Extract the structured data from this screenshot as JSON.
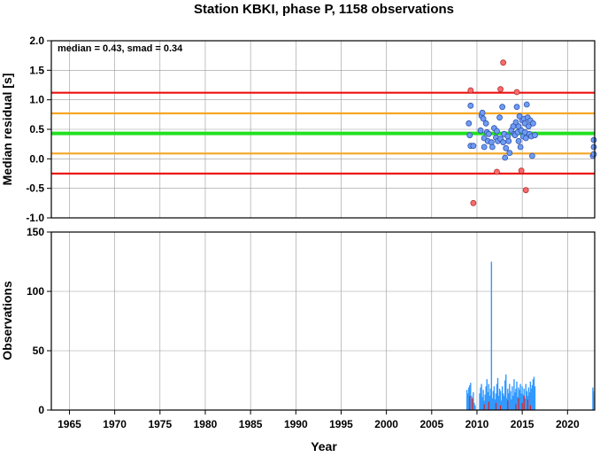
{
  "title": "Station KBKI, phase P, 1158 observations",
  "colors": {
    "median_line": "#22e022",
    "smad_line": "#f5a623",
    "outer_line": "#ee1111",
    "point_fill": "#6f9cf5",
    "point_outlier": "#ff6b6b",
    "bar_blue": "#3399ff",
    "bar_red": "#dd2222",
    "grid": "#9a9a9a"
  },
  "chart_data": [
    {
      "type": "scatter",
      "name": "residuals",
      "annotation": "median = 0.43, smad = 0.34",
      "ylabel": "Median residual [s]",
      "xlim": [
        1963,
        2023
      ],
      "ylim": [
        -1.0,
        2.0
      ],
      "yticks": [
        "2.0",
        "1.5",
        "1.0",
        "0.5",
        "0.0",
        "-0.5",
        "-1.0"
      ],
      "grid": true,
      "hlines": [
        {
          "y": 1.12,
          "kind": "outer"
        },
        {
          "y": 0.77,
          "kind": "smad"
        },
        {
          "y": 0.43,
          "kind": "median"
        },
        {
          "y": 0.09,
          "kind": "smad"
        },
        {
          "y": -0.25,
          "kind": "outer"
        }
      ],
      "points": [
        [
          2009.1,
          0.6
        ],
        [
          2009.2,
          0.4
        ],
        [
          2009.3,
          0.9
        ],
        [
          2009.3,
          0.22
        ],
        [
          2009.6,
          0.22
        ],
        [
          2010.4,
          0.48
        ],
        [
          2010.5,
          0.73
        ],
        [
          2010.6,
          0.78
        ],
        [
          2010.7,
          0.68
        ],
        [
          2010.8,
          0.35
        ],
        [
          2010.8,
          0.2
        ],
        [
          2011.0,
          0.6
        ],
        [
          2011.1,
          0.45
        ],
        [
          2011.2,
          0.3
        ],
        [
          2011.3,
          0.42
        ],
        [
          2011.6,
          0.28
        ],
        [
          2011.7,
          0.2
        ],
        [
          2011.9,
          0.52
        ],
        [
          2012.1,
          0.36
        ],
        [
          2012.2,
          0.47
        ],
        [
          2012.3,
          0.3
        ],
        [
          2012.5,
          0.7
        ],
        [
          2012.6,
          0.34
        ],
        [
          2012.8,
          0.88
        ],
        [
          2012.9,
          0.28
        ],
        [
          2013.0,
          0.42
        ],
        [
          2013.1,
          0.02
        ],
        [
          2013.2,
          0.18
        ],
        [
          2013.4,
          0.38
        ],
        [
          2013.5,
          0.3
        ],
        [
          2013.6,
          0.1
        ],
        [
          2013.8,
          0.48
        ],
        [
          2014.0,
          0.55
        ],
        [
          2014.1,
          0.42
        ],
        [
          2014.2,
          0.4
        ],
        [
          2014.3,
          0.62
        ],
        [
          2014.4,
          0.88
        ],
        [
          2014.5,
          0.45
        ],
        [
          2014.6,
          0.55
        ],
        [
          2014.6,
          0.3
        ],
        [
          2014.7,
          0.72
        ],
        [
          2014.8,
          0.2
        ],
        [
          2014.9,
          0.48
        ],
        [
          2015.0,
          0.65
        ],
        [
          2015.1,
          0.38
        ],
        [
          2015.2,
          0.68
        ],
        [
          2015.3,
          0.6
        ],
        [
          2015.3,
          0.45
        ],
        [
          2015.4,
          0.35
        ],
        [
          2015.5,
          0.92
        ],
        [
          2015.6,
          0.7
        ],
        [
          2015.7,
          0.55
        ],
        [
          2015.8,
          0.42
        ],
        [
          2015.9,
          0.65
        ],
        [
          2016.0,
          0.38
        ],
        [
          2016.1,
          0.05
        ],
        [
          2016.2,
          0.6
        ],
        [
          2016.4,
          0.4
        ],
        [
          2022.8,
          0.05
        ],
        [
          2022.9,
          0.32
        ],
        [
          2023.0,
          0.08
        ],
        [
          2023.0,
          0.2
        ]
      ],
      "outliers": [
        [
          2009.3,
          1.16
        ],
        [
          2009.6,
          -0.75
        ],
        [
          2012.2,
          -0.22
        ],
        [
          2012.6,
          1.18
        ],
        [
          2012.9,
          1.63
        ],
        [
          2014.4,
          1.13
        ],
        [
          2014.9,
          -0.2
        ],
        [
          2015.4,
          -0.53
        ]
      ]
    },
    {
      "type": "bar",
      "name": "observations",
      "ylabel": "Observations",
      "xlabel": "Year",
      "xlim": [
        1963,
        2023
      ],
      "ylim": [
        0,
        150
      ],
      "xticks": [
        "1965",
        "1970",
        "1975",
        "1980",
        "1985",
        "1990",
        "1995",
        "2000",
        "2005",
        "2010",
        "2015",
        "2020"
      ],
      "yticks": [
        "150",
        "100",
        "50",
        "0"
      ],
      "grid": true,
      "blue_bars": [
        [
          2008.9,
          17
        ],
        [
          2009.0,
          14
        ],
        [
          2009.1,
          19
        ],
        [
          2009.2,
          21
        ],
        [
          2009.3,
          23
        ],
        [
          2009.4,
          12
        ],
        [
          2009.5,
          9
        ],
        [
          2009.6,
          15
        ],
        [
          2009.7,
          6
        ],
        [
          2009.8,
          4
        ],
        [
          2010.3,
          14
        ],
        [
          2010.4,
          19
        ],
        [
          2010.5,
          22
        ],
        [
          2010.6,
          11
        ],
        [
          2010.7,
          17
        ],
        [
          2010.8,
          8
        ],
        [
          2010.9,
          13
        ],
        [
          2011.0,
          20
        ],
        [
          2011.1,
          26
        ],
        [
          2011.2,
          15
        ],
        [
          2011.3,
          22
        ],
        [
          2011.4,
          12
        ],
        [
          2011.5,
          18
        ],
        [
          2011.6,
          125
        ],
        [
          2011.7,
          10
        ],
        [
          2011.8,
          16
        ],
        [
          2011.9,
          20
        ],
        [
          2012.0,
          9
        ],
        [
          2012.1,
          14
        ],
        [
          2012.2,
          22
        ],
        [
          2012.3,
          27
        ],
        [
          2012.4,
          12
        ],
        [
          2012.5,
          18
        ],
        [
          2012.6,
          16
        ],
        [
          2012.7,
          8
        ],
        [
          2012.8,
          20
        ],
        [
          2012.9,
          14
        ],
        [
          2013.0,
          12
        ],
        [
          2013.1,
          25
        ],
        [
          2013.2,
          30
        ],
        [
          2013.3,
          10
        ],
        [
          2013.4,
          18
        ],
        [
          2013.5,
          14
        ],
        [
          2013.6,
          22
        ],
        [
          2013.7,
          16
        ],
        [
          2013.8,
          9
        ],
        [
          2013.9,
          20
        ],
        [
          2014.0,
          12
        ],
        [
          2014.1,
          26
        ],
        [
          2014.2,
          15
        ],
        [
          2014.3,
          18
        ],
        [
          2014.4,
          24
        ],
        [
          2014.5,
          11
        ],
        [
          2014.6,
          19
        ],
        [
          2014.7,
          17
        ],
        [
          2014.8,
          22
        ],
        [
          2014.9,
          14
        ],
        [
          2015.0,
          20
        ],
        [
          2015.1,
          13
        ],
        [
          2015.2,
          18
        ],
        [
          2015.3,
          10
        ],
        [
          2015.4,
          22
        ],
        [
          2015.5,
          16
        ],
        [
          2015.6,
          12
        ],
        [
          2015.7,
          19
        ],
        [
          2015.8,
          15
        ],
        [
          2015.9,
          24
        ],
        [
          2016.0,
          18
        ],
        [
          2016.1,
          21
        ],
        [
          2016.2,
          26
        ],
        [
          2016.3,
          28
        ],
        [
          2016.4,
          20
        ],
        [
          2022.8,
          19
        ],
        [
          2022.9,
          16
        ],
        [
          2023.0,
          12
        ]
      ],
      "red_bars": [
        [
          2009.2,
          12
        ],
        [
          2009.5,
          10
        ],
        [
          2010.8,
          5
        ],
        [
          2011.3,
          7
        ],
        [
          2012.1,
          6
        ],
        [
          2012.6,
          4
        ],
        [
          2013.4,
          8
        ],
        [
          2014.3,
          5
        ],
        [
          2014.6,
          10
        ],
        [
          2015.0,
          6
        ],
        [
          2015.2,
          12
        ],
        [
          2015.6,
          9
        ],
        [
          2015.9,
          4
        ]
      ]
    }
  ]
}
